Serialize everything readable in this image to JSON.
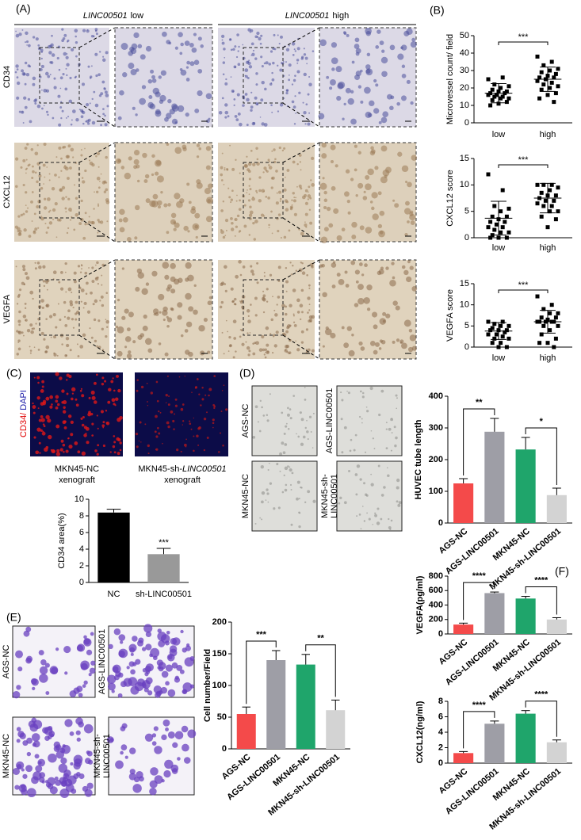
{
  "panel_labels": [
    "(A)",
    "(B)",
    "(C)",
    "(D)",
    "(E)",
    "(F)"
  ],
  "panel_a": {
    "column_headers": [
      {
        "gene": "LINC00501",
        "level": "low"
      },
      {
        "gene": "LINC00501",
        "level": "high"
      }
    ],
    "row_labels": [
      "CD34",
      "CXCL12",
      "VEGFA"
    ]
  },
  "panel_c": {
    "stain_label": [
      "CD34/",
      "DAPI"
    ],
    "captions": [
      [
        "MKN45-NC",
        "xenograft"
      ],
      [
        [
          "MKN45-sh-",
          "LINC00501"
        ],
        "xenograft"
      ]
    ]
  },
  "panel_d": {
    "image_labels": [
      [
        "AGS-NC"
      ],
      [
        "AGS-LINC00501"
      ],
      [
        "MKN45-NC"
      ],
      [
        "MKN45-sh-",
        "LINC00501"
      ]
    ]
  },
  "panel_e": {
    "image_labels": [
      [
        "AGS-NC"
      ],
      [
        "AGS-LINC00501"
      ],
      [
        "MKN45-NC"
      ],
      [
        "MKN45-sh-",
        "LINC00501"
      ]
    ]
  },
  "chart_data": [
    {
      "type": "strip",
      "y_label": "Microvessel count/ field",
      "categories": [
        "low",
        "high"
      ],
      "groups": [
        {
          "values": [
            25,
            26,
            22,
            21,
            20,
            19,
            18,
            18,
            17,
            17,
            16,
            16,
            15,
            15,
            14,
            14,
            13,
            12,
            11,
            10
          ],
          "mean": 17,
          "sd": 5.5
        },
        {
          "values": [
            38,
            35,
            33,
            31,
            30,
            29,
            28,
            27,
            26,
            26,
            25,
            24,
            23,
            22,
            21,
            20,
            19,
            17,
            16,
            14,
            12
          ],
          "mean": 25,
          "sd": 7
        }
      ],
      "color": "#000000",
      "ylim": [
        0,
        50
      ],
      "yticks": [
        0,
        10,
        20,
        30,
        40,
        50
      ],
      "annotations": [
        "***"
      ]
    },
    {
      "type": "strip",
      "y_label": "CXCL12 score",
      "categories": [
        "low",
        "high"
      ],
      "groups": [
        {
          "values": [
            12,
            9,
            6,
            5.5,
            5,
            4,
            4,
            3.5,
            3,
            3,
            2.5,
            2,
            2,
            1.5,
            1,
            1,
            0.5,
            0,
            0,
            0
          ],
          "mean": 3.7,
          "sd": 3.2
        },
        {
          "values": [
            10,
            10,
            10,
            9.5,
            9,
            8.5,
            8,
            8,
            7.5,
            7,
            7,
            6.5,
            6,
            6,
            5,
            5,
            4,
            3.5,
            2
          ],
          "mean": 7.5,
          "sd": 2.8
        }
      ],
      "color": "#000000",
      "ylim": [
        0,
        15
      ],
      "yticks": [
        0,
        5,
        10,
        15
      ],
      "annotations": [
        "***"
      ]
    },
    {
      "type": "strip",
      "y_label": "VEGFA score",
      "categories": [
        "low",
        "high"
      ],
      "groups": [
        {
          "values": [
            6,
            6,
            5.5,
            5,
            5,
            4.5,
            4,
            4,
            4,
            3.5,
            3,
            3,
            2.5,
            2,
            2,
            1,
            1,
            0,
            0
          ],
          "mean": 3.8,
          "sd": 2
        },
        {
          "values": [
            12,
            10,
            9,
            8,
            8,
            7,
            7,
            6.5,
            6,
            6,
            6,
            6,
            6,
            5,
            5,
            4,
            3,
            2,
            1,
            1,
            0
          ],
          "mean": 6,
          "sd": 2.7
        }
      ],
      "color": "#000000",
      "ylim": [
        0,
        15
      ],
      "yticks": [
        0,
        5,
        10,
        15
      ],
      "annotations": [
        "***"
      ]
    },
    {
      "type": "bar",
      "y_label": "CD34 area(%)",
      "categories": [
        "NC",
        "sh-LINC00501"
      ],
      "values": [
        8.4,
        3.4
      ],
      "errors": [
        0.4,
        0.7
      ],
      "colors": [
        "#000000",
        "#999999"
      ],
      "ylim": [
        0,
        10
      ],
      "yticks": [
        0,
        2,
        4,
        6,
        8,
        10
      ],
      "annotations": [
        "***"
      ]
    },
    {
      "type": "bar",
      "y_label": "HUVEC tube length",
      "categories": [
        "AGS-NC",
        "AGS-LINC00501",
        "MKN45-NC",
        "MKN45-sh-LINC00501"
      ],
      "values": [
        125,
        288,
        232,
        88
      ],
      "errors": [
        15,
        42,
        38,
        22
      ],
      "colors": [
        "#f44a4a",
        "#9e9ea6",
        "#1fa56b",
        "#d3d3d3"
      ],
      "ylim": [
        0,
        400
      ],
      "yticks": [
        0,
        100,
        200,
        300,
        400
      ],
      "annotations": [
        "**",
        "*"
      ]
    },
    {
      "type": "bar",
      "y_label": "Cell number/Field",
      "categories": [
        "AGS-NC",
        "AGS-LINC00501",
        "MKN45-NC",
        "MKN45-sh-LINC00501"
      ],
      "values": [
        55,
        140,
        133,
        61
      ],
      "errors": [
        11,
        15,
        16,
        16
      ],
      "colors": [
        "#f44a4a",
        "#9e9ea6",
        "#1fa56b",
        "#d3d3d3"
      ],
      "ylim": [
        0,
        200
      ],
      "yticks": [
        0,
        50,
        100,
        150,
        200
      ],
      "annotations": [
        "***",
        "**"
      ]
    },
    {
      "type": "bar",
      "y_label": "VEGFA(pg/ml)",
      "categories": [
        "AGS-NC",
        "AGS-LINC00501",
        "MKN45-NC",
        "MKN45-sh-LINC00501"
      ],
      "values": [
        130,
        565,
        490,
        200
      ],
      "errors": [
        20,
        15,
        30,
        25
      ],
      "colors": [
        "#f44a4a",
        "#9e9ea6",
        "#1fa56b",
        "#d3d3d3"
      ],
      "ylim": [
        0,
        800
      ],
      "yticks": [
        0,
        200,
        400,
        600,
        800
      ],
      "annotations": [
        "****",
        "****"
      ]
    },
    {
      "type": "bar",
      "y_label": "CXCL12(ng/ml)",
      "categories": [
        "AGS-NC",
        "AGS-LINC00501",
        "MKN45-NC",
        "MKN45-sh-LINC00501"
      ],
      "values": [
        1.3,
        5.1,
        6.4,
        2.7
      ],
      "errors": [
        0.2,
        0.35,
        0.4,
        0.3
      ],
      "colors": [
        "#f44a4a",
        "#9e9ea6",
        "#1fa56b",
        "#d3d3d3"
      ],
      "ylim": [
        0,
        8
      ],
      "yticks": [
        0,
        2,
        4,
        6,
        8
      ],
      "annotations": [
        "****",
        "****"
      ]
    }
  ]
}
